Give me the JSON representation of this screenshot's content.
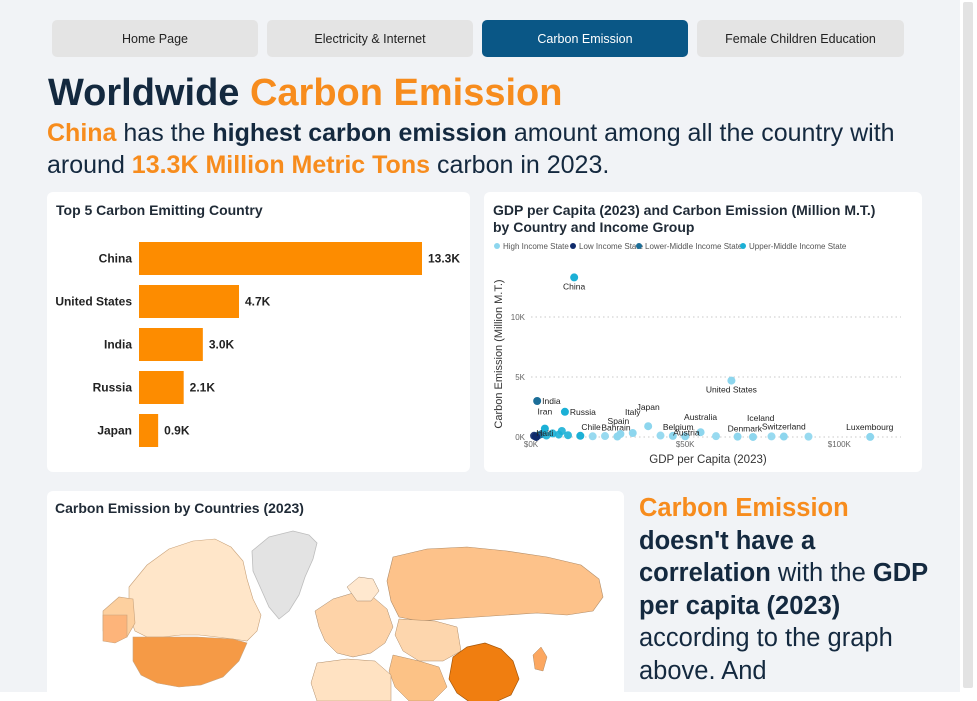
{
  "tabs": [
    {
      "label": "Home Page",
      "active": false
    },
    {
      "label": "Electricity & Internet",
      "active": false
    },
    {
      "label": "Carbon Emission",
      "active": true
    },
    {
      "label": "Female Children Education",
      "active": false
    }
  ],
  "header": {
    "title_plain": "Worldwide ",
    "title_accent": "Carbon Emission",
    "sub_country": "China",
    "sub_t1": " has the ",
    "sub_bold": "highest carbon emission",
    "sub_t2": " amount among all the country with around ",
    "sub_value": "13.3K Million Metric Tons",
    "sub_t3": " carbon in 2023."
  },
  "side_note": {
    "accent": "Carbon Emission",
    "bold1": "doesn't have a correlation",
    "t1": " with the ",
    "bold2": "GDP per capita (2023)",
    "t2": " according to the graph above. And"
  },
  "map_card": {
    "title": "Carbon Emission by Countries (2023)"
  },
  "colors": {
    "accent": "#f78c1d",
    "tab_active": "#0a5786",
    "navy": "#14293f",
    "bar": "#fd8c00"
  },
  "chart_data": [
    {
      "type": "bar",
      "orientation": "horizontal",
      "title": "Top 5 Carbon Emitting Country",
      "categories": [
        "China",
        "United States",
        "India",
        "Russia",
        "Japan"
      ],
      "values": [
        13.3,
        4.7,
        3.0,
        2.1,
        0.9
      ],
      "value_labels": [
        "13.3K",
        "4.7K",
        "3.0K",
        "2.1K",
        "0.9K"
      ],
      "xlim": [
        0,
        13.3
      ],
      "color": "#fd8c00"
    },
    {
      "type": "scatter",
      "title_line1": "GDP per Capita (2023) and Carbon Emission (Million M.T.)",
      "title_line2": "by Country and Income Group",
      "xlabel": "GDP per Capita (2023)",
      "ylabel": "Carbon Emission (Million M.T.)",
      "xlim": [
        0,
        120000
      ],
      "ylim": [
        0,
        14000
      ],
      "x_ticks": [
        {
          "v": 0,
          "label": "$0K"
        },
        {
          "v": 50000,
          "label": "$50K"
        },
        {
          "v": 100000,
          "label": "$100K"
        }
      ],
      "y_ticks": [
        {
          "v": 0,
          "label": "0K"
        },
        {
          "v": 5000,
          "label": "5K"
        },
        {
          "v": 10000,
          "label": "10K"
        }
      ],
      "grid": true,
      "legend_position": "top-left",
      "legend": [
        {
          "name": "High Income State",
          "color": "#8dd6ee"
        },
        {
          "name": "Low Income State",
          "color": "#0f2a6b"
        },
        {
          "name": "Lower-Middle Income State",
          "color": "#1c6e98"
        },
        {
          "name": "Upper-Middle Income State",
          "color": "#1bb0d6"
        }
      ],
      "labeled_points": [
        {
          "label": "China",
          "x": 14000,
          "y": 13300,
          "group": "Upper-Middle Income State"
        },
        {
          "label": "United States",
          "x": 65000,
          "y": 4700,
          "group": "High Income State"
        },
        {
          "label": "India",
          "x": 2000,
          "y": 3000,
          "group": "Lower-Middle Income State"
        },
        {
          "label": "Russia",
          "x": 11000,
          "y": 2100,
          "group": "Upper-Middle Income State"
        },
        {
          "label": "Iran",
          "x": 4500,
          "y": 700,
          "group": "Upper-Middle Income State"
        },
        {
          "label": "Chile",
          "x": 16000,
          "y": 100,
          "group": "Upper-Middle Income State"
        },
        {
          "label": "Bahrain",
          "x": 28000,
          "y": 40,
          "group": "High Income State"
        },
        {
          "label": "Spain",
          "x": 29000,
          "y": 250,
          "group": "High Income State"
        },
        {
          "label": "Italy",
          "x": 33000,
          "y": 330,
          "group": "High Income State"
        },
        {
          "label": "Japan",
          "x": 38000,
          "y": 900,
          "group": "High Income State"
        },
        {
          "label": "Belgium",
          "x": 46000,
          "y": 90,
          "group": "High Income State"
        },
        {
          "label": "Australia",
          "x": 55000,
          "y": 400,
          "group": "High Income State"
        },
        {
          "label": "Austria",
          "x": 50000,
          "y": 60,
          "group": "High Income State"
        },
        {
          "label": "Iceland",
          "x": 72000,
          "y": 3,
          "group": "High Income State"
        },
        {
          "label": "Denmark",
          "x": 67000,
          "y": 30,
          "group": "High Income State"
        },
        {
          "label": "Switzerland",
          "x": 82000,
          "y": 40,
          "group": "High Income State"
        },
        {
          "label": "Luxembourg",
          "x": 110000,
          "y": 8,
          "group": "High Income State"
        },
        {
          "label": "Haiti",
          "x": 1700,
          "y": 3,
          "group": "Low Income State"
        }
      ],
      "unlabeled_points": [
        {
          "x": 1000,
          "y": 100,
          "group": "Low Income State"
        },
        {
          "x": 1500,
          "y": 50,
          "group": "Low Income State"
        },
        {
          "x": 2500,
          "y": 150,
          "group": "Lower-Middle Income State"
        },
        {
          "x": 3500,
          "y": 250,
          "group": "Lower-Middle Income State"
        },
        {
          "x": 5000,
          "y": 120,
          "group": "Upper-Middle Income State"
        },
        {
          "x": 7000,
          "y": 300,
          "group": "Upper-Middle Income State"
        },
        {
          "x": 9000,
          "y": 200,
          "group": "Upper-Middle Income State"
        },
        {
          "x": 10000,
          "y": 500,
          "group": "Upper-Middle Income State"
        },
        {
          "x": 12000,
          "y": 150,
          "group": "Upper-Middle Income State"
        },
        {
          "x": 20000,
          "y": 60,
          "group": "High Income State"
        },
        {
          "x": 24000,
          "y": 80,
          "group": "High Income State"
        },
        {
          "x": 42000,
          "y": 120,
          "group": "High Income State"
        },
        {
          "x": 60000,
          "y": 70,
          "group": "High Income State"
        },
        {
          "x": 78000,
          "y": 50,
          "group": "High Income State"
        },
        {
          "x": 90000,
          "y": 30,
          "group": "High Income State"
        }
      ]
    }
  ]
}
